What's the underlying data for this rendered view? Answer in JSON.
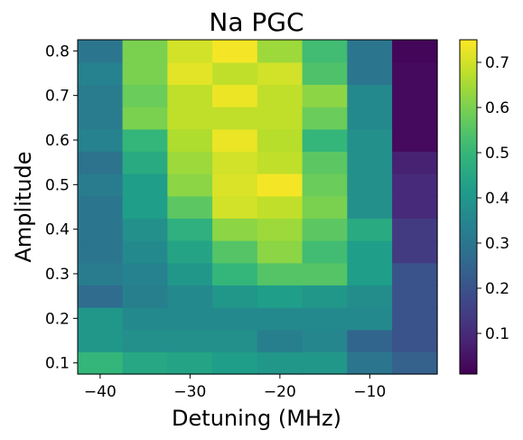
{
  "chart_data": {
    "type": "heatmap",
    "title": "Na PGC",
    "xlabel": "Detuning (MHz)",
    "ylabel": "Amplitude",
    "x_edges": [
      -42.5,
      -37.5,
      -32.5,
      -27.5,
      -22.5,
      -17.5,
      -12.5,
      -7.5,
      -2.5
    ],
    "y_edges": [
      0.075,
      0.125,
      0.175,
      0.225,
      0.275,
      0.325,
      0.375,
      0.425,
      0.475,
      0.525,
      0.575,
      0.625,
      0.675,
      0.725,
      0.775,
      0.825
    ],
    "xlim": [
      -42.5,
      -2.5
    ],
    "ylim": [
      0.075,
      0.825
    ],
    "xticks": [
      -40,
      -30,
      -20,
      -10
    ],
    "xtick_labels": [
      "−40",
      "−30",
      "−20",
      "−10"
    ],
    "yticks": [
      0.1,
      0.2,
      0.3,
      0.4,
      0.5,
      0.6,
      0.7,
      0.8
    ],
    "ytick_labels": [
      "0.1",
      "0.2",
      "0.3",
      "0.4",
      "0.5",
      "0.6",
      "0.7",
      "0.8"
    ],
    "values": [
      [
        0.5,
        0.45,
        0.44,
        0.42,
        0.4,
        0.4,
        0.3,
        0.24
      ],
      [
        0.4,
        0.38,
        0.38,
        0.38,
        0.33,
        0.35,
        0.25,
        0.2
      ],
      [
        0.4,
        0.36,
        0.36,
        0.36,
        0.36,
        0.36,
        0.36,
        0.2
      ],
      [
        0.27,
        0.33,
        0.36,
        0.4,
        0.42,
        0.4,
        0.37,
        0.2
      ],
      [
        0.32,
        0.34,
        0.4,
        0.5,
        0.55,
        0.55,
        0.42,
        0.2
      ],
      [
        0.3,
        0.36,
        0.44,
        0.55,
        0.62,
        0.52,
        0.42,
        0.14
      ],
      [
        0.3,
        0.38,
        0.48,
        0.62,
        0.64,
        0.56,
        0.46,
        0.14
      ],
      [
        0.3,
        0.42,
        0.56,
        0.7,
        0.68,
        0.6,
        0.38,
        0.1
      ],
      [
        0.32,
        0.42,
        0.62,
        0.71,
        0.74,
        0.58,
        0.38,
        0.1
      ],
      [
        0.29,
        0.46,
        0.64,
        0.7,
        0.68,
        0.56,
        0.38,
        0.08
      ],
      [
        0.34,
        0.5,
        0.66,
        0.73,
        0.67,
        0.5,
        0.38,
        0.03
      ],
      [
        0.32,
        0.6,
        0.68,
        0.68,
        0.68,
        0.58,
        0.36,
        0.03
      ],
      [
        0.32,
        0.58,
        0.68,
        0.73,
        0.68,
        0.62,
        0.36,
        0.03
      ],
      [
        0.34,
        0.6,
        0.72,
        0.68,
        0.7,
        0.54,
        0.3,
        0.03
      ],
      [
        0.3,
        0.6,
        0.7,
        0.74,
        0.64,
        0.52,
        0.3,
        0.02
      ]
    ],
    "colorbar": {
      "colormap": "viridis",
      "vmin": 0.01,
      "vmax": 0.75,
      "ticks": [
        0.1,
        0.2,
        0.3,
        0.4,
        0.5,
        0.6,
        0.7
      ],
      "tick_labels": [
        "0.1",
        "0.2",
        "0.3",
        "0.4",
        "0.5",
        "0.6",
        "0.7"
      ]
    },
    "grid": false,
    "legend": "none"
  }
}
